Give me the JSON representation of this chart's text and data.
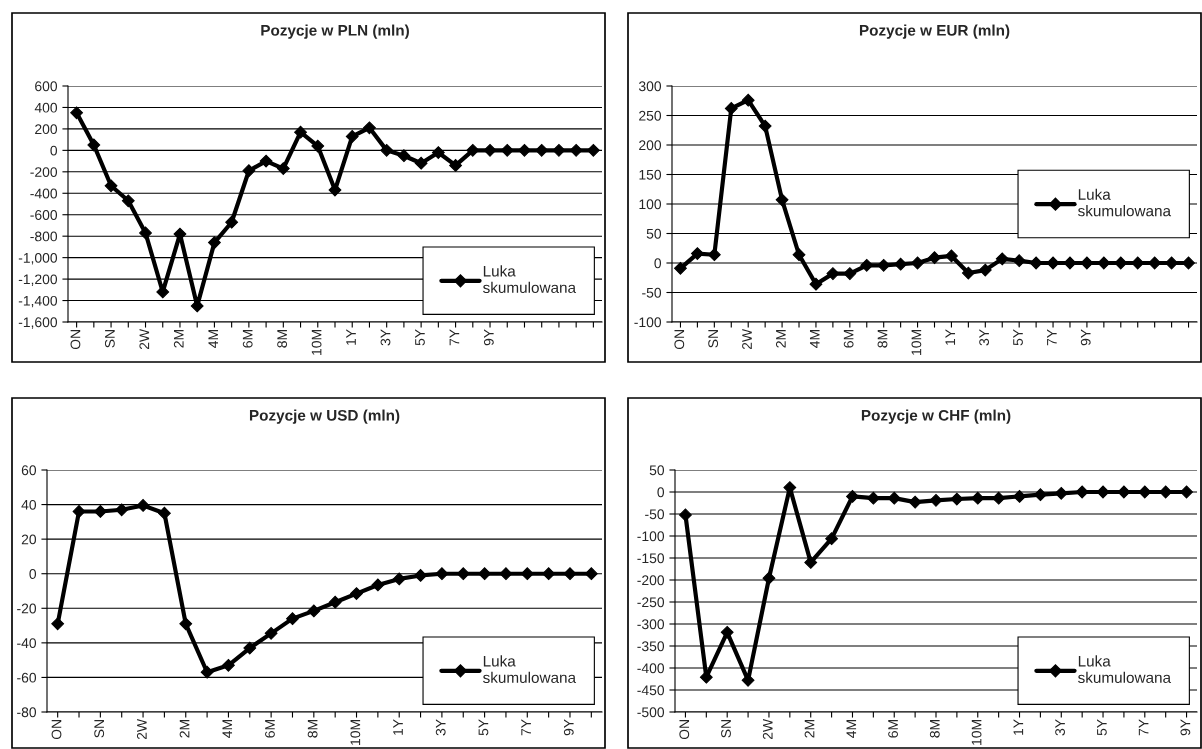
{
  "chart_data": [
    {
      "type": "line",
      "title": "Pozycje w PLN (mln)",
      "categories": [
        "ON",
        null,
        "SN",
        null,
        "2W",
        null,
        "2M",
        null,
        "4M",
        null,
        "6M",
        null,
        "8M",
        null,
        "10M",
        null,
        "1Y",
        null,
        "3Y",
        null,
        "5Y",
        null,
        "7Y",
        null,
        "9Y",
        null,
        null,
        null,
        null,
        null,
        null
      ],
      "series": [
        {
          "name": "Luka skumulowana",
          "color": "#000000",
          "values": [
            350,
            50,
            -330,
            -470,
            -770,
            -1320,
            -780,
            -1450,
            -860,
            -670,
            -190,
            -100,
            -170,
            170,
            40,
            -370,
            130,
            210,
            0,
            -50,
            -120,
            -20,
            -140,
            0,
            0,
            0,
            0,
            0,
            0,
            0,
            0
          ]
        }
      ],
      "ylim": [
        -1600,
        600
      ],
      "yticks": [
        {
          "value": -1600,
          "label": "-1,600"
        },
        {
          "value": -1400,
          "label": "-1,400"
        },
        {
          "value": -1200,
          "label": "-1,200"
        },
        {
          "value": -1000,
          "label": "-1,000"
        },
        -800,
        -600,
        -400,
        -200,
        0,
        200,
        400,
        600
      ],
      "grid": "y",
      "legend": "bottom right",
      "marker": "diamond",
      "line_style": "solid"
    },
    {
      "type": "line",
      "title": "Pozycje w EUR (mln)",
      "categories": [
        "ON",
        null,
        "SN",
        null,
        "2W",
        null,
        "2M",
        null,
        "4M",
        null,
        "6M",
        null,
        "8M",
        null,
        "10M",
        null,
        "1Y",
        null,
        "3Y",
        null,
        "5Y",
        null,
        "7Y",
        null,
        "9Y",
        null,
        null,
        null,
        null,
        null,
        null
      ],
      "series": [
        {
          "name": "Luka skumulowana",
          "color": "#000000",
          "values": [
            -9,
            16,
            14,
            262,
            276,
            232,
            107,
            14,
            -36,
            -18,
            -18,
            -4,
            -4,
            -2,
            0,
            9,
            12,
            -17,
            -12,
            7,
            4,
            0,
            0,
            0,
            0,
            0,
            0,
            0,
            0,
            0,
            0
          ]
        }
      ],
      "ylim": [
        -100,
        300
      ],
      "yticks": [
        -100,
        -50,
        0,
        50,
        100,
        150,
        200,
        250,
        300
      ],
      "grid": "y",
      "legend": "right",
      "marker": "diamond",
      "line_style": "solid"
    },
    {
      "type": "line",
      "title": "Pozycje w USD (mln)",
      "categories": [
        "ON",
        null,
        "SN",
        null,
        "2W",
        null,
        "2M",
        null,
        "4M",
        null,
        "6M",
        null,
        "8M",
        null,
        "10M",
        null,
        "1Y",
        null,
        "3Y",
        null,
        "5Y",
        null,
        "7Y",
        null,
        "9Y",
        null
      ],
      "series": [
        {
          "name": "Luka skumulowana",
          "color": "#000000",
          "values": [
            -29,
            36,
            36,
            37,
            39.5,
            35,
            -29,
            -57,
            -53,
            -43,
            -34.5,
            -26,
            -21.5,
            -16.5,
            -11.5,
            -6.5,
            -3,
            -1,
            0,
            0,
            0,
            0,
            0,
            0,
            0,
            0
          ]
        }
      ],
      "ylim": [
        -80,
        60
      ],
      "yticks": [
        -80,
        -60,
        -40,
        -20,
        0,
        20,
        40,
        60
      ],
      "grid": "y",
      "legend": "bottom right",
      "marker": "diamond",
      "line_style": "solid"
    },
    {
      "type": "line",
      "title": "Pozycje w CHF (mln)",
      "categories": [
        "ON",
        null,
        "SN",
        null,
        "2W",
        null,
        "2M",
        null,
        "4M",
        null,
        "6M",
        null,
        "8M",
        null,
        "10M",
        null,
        "1Y",
        null,
        "3Y",
        null,
        "5Y",
        null,
        "7Y",
        null,
        "9Y"
      ],
      "series": [
        {
          "name": "Luka skumulowana",
          "color": "#000000",
          "values": [
            -52,
            -421,
            -319,
            -428,
            -196,
            10,
            -160,
            -106,
            -10,
            -14,
            -14,
            -23,
            -19,
            -16,
            -14,
            -14,
            -10,
            -6,
            -3,
            0,
            0,
            0,
            0,
            0,
            0
          ]
        }
      ],
      "ylim": [
        -500,
        50
      ],
      "yticks": [
        -500,
        -450,
        -400,
        -350,
        -300,
        -250,
        -200,
        -150,
        -100,
        -50,
        0,
        50
      ],
      "grid": "y",
      "legend": "bottom right",
      "marker": "diamond",
      "line_style": "solid"
    }
  ]
}
